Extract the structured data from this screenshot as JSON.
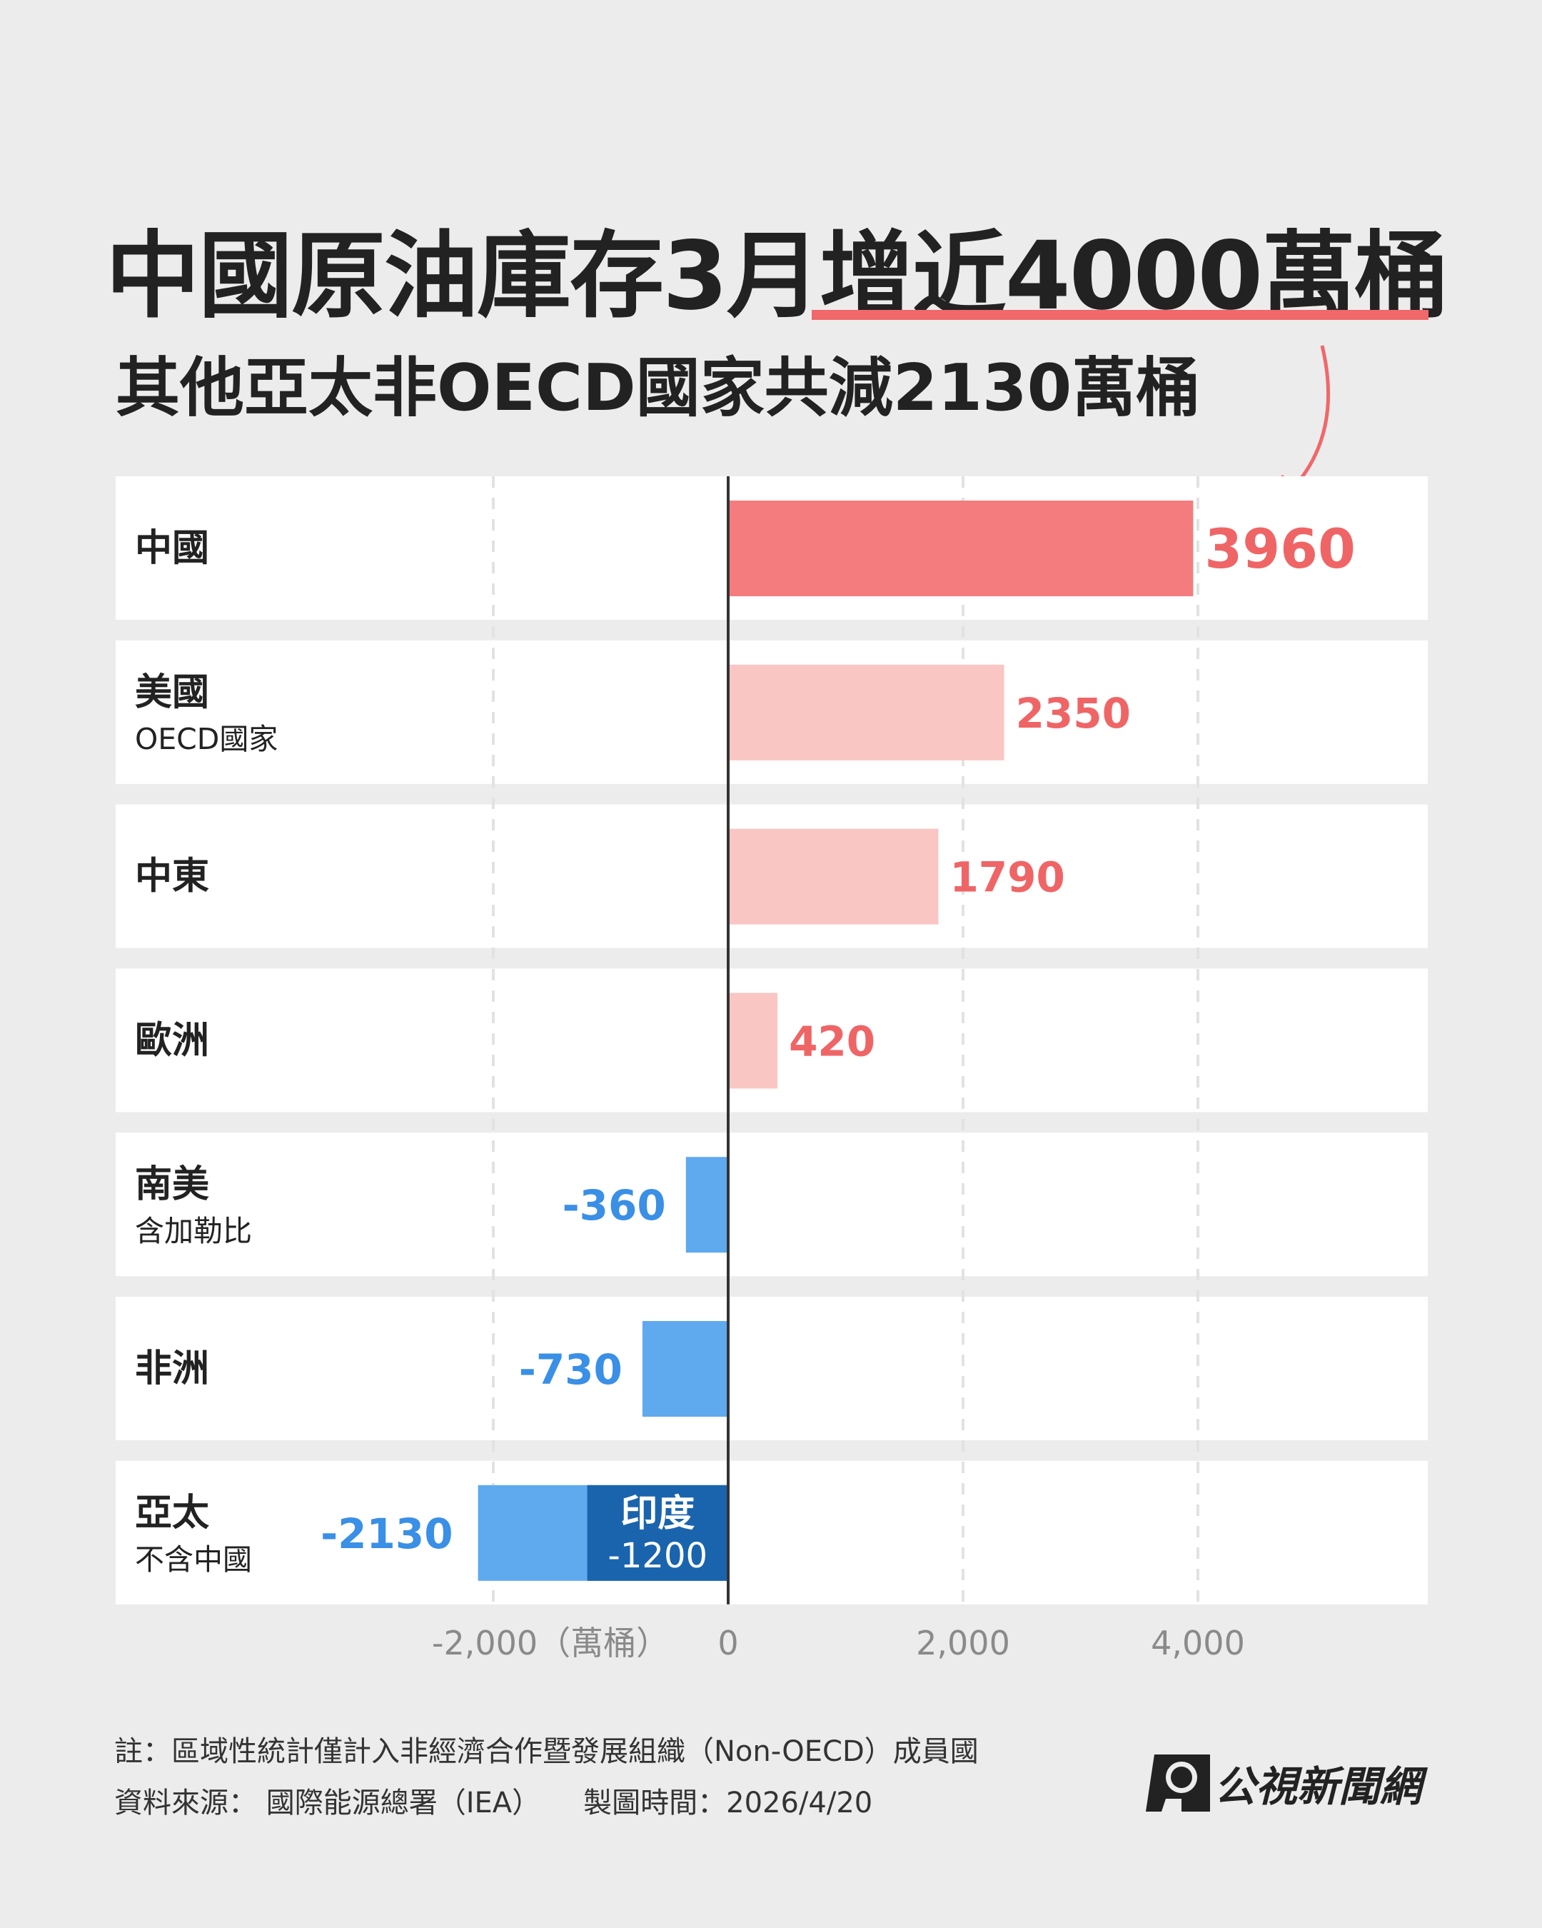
{
  "title": {
    "part1": "中國原油庫存3月",
    "part2": "增近4000萬桶"
  },
  "subtitle": "其他亞太非OECD國家共減2130萬桶",
  "chart_data": {
    "type": "bar",
    "orientation": "horizontal",
    "unit": "萬桶",
    "categories": [
      {
        "label": "中國",
        "sub": ""
      },
      {
        "label": "美國",
        "sub": "OECD國家"
      },
      {
        "label": "中東",
        "sub": ""
      },
      {
        "label": "歐洲",
        "sub": ""
      },
      {
        "label": "南美",
        "sub": "含加勒比"
      },
      {
        "label": "非洲",
        "sub": ""
      },
      {
        "label": "亞太",
        "sub": "不含中國"
      }
    ],
    "values": [
      3960,
      2350,
      1790,
      420,
      -360,
      -730,
      -2130
    ],
    "value_labels": [
      "3960",
      "2350",
      "1790",
      "420",
      "-360",
      "-730",
      "-2130"
    ],
    "sub_segment": {
      "category_index": 6,
      "label": "印度",
      "value": -1200,
      "value_label": "-1200"
    },
    "xlim": [
      -3200,
      5900
    ],
    "x_ticks": [
      -2000,
      0,
      2000,
      4000
    ],
    "x_tick_labels": [
      "-2,000",
      "0",
      "2,000",
      "4,000"
    ],
    "x_unit_label": "（萬桶）",
    "grid": true,
    "colors": {
      "highlight": "#f47c7f",
      "positive": "#f9c6c4",
      "positive_text": "#ef6566",
      "negative": "#5fa9ee",
      "negative_text": "#3a8fe6",
      "sub_segment": "#1a64ae"
    }
  },
  "footer": {
    "note": "註：區域性統計僅計入非經濟合作暨發展組織（Non-OECD）成員國",
    "source": "資料來源： 國際能源總署（IEA）",
    "date": "製圖時間：2026/4/20"
  },
  "logo": {
    "text": "公視新聞網"
  }
}
